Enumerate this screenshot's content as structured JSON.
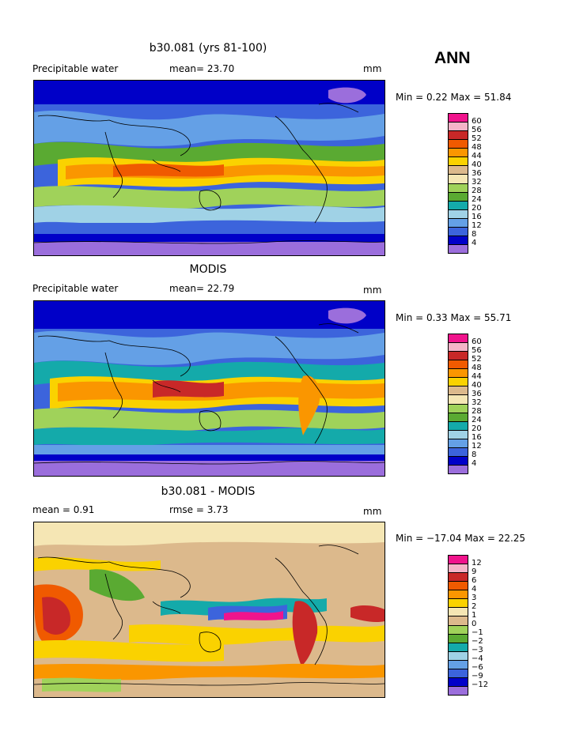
{
  "season": "ANN",
  "units": "mm",
  "panels": [
    {
      "title": "b30.081 (yrs 81-100)",
      "left_label": "Precipitable water",
      "stat_label": "mean=  23.70",
      "units": "mm",
      "minmax": "Min =    0.22 Max =  51.84",
      "scale": [
        "60",
        "56",
        "52",
        "48",
        "44",
        "40",
        "36",
        "32",
        "28",
        "24",
        "20",
        "16",
        "12",
        "8",
        "4"
      ]
    },
    {
      "title": "MODIS",
      "left_label": "Precipitable water",
      "stat_label": "mean=  22.79",
      "units": "mm",
      "minmax": "Min =    0.33 Max =  55.71",
      "scale": [
        "60",
        "56",
        "52",
        "48",
        "44",
        "40",
        "36",
        "32",
        "28",
        "24",
        "20",
        "16",
        "12",
        "8",
        "4"
      ]
    },
    {
      "title": "b30.081 - MODIS",
      "left_label": "mean =    0.91",
      "stat_label": "rmse =    3.73",
      "units": "mm",
      "minmax": "Min = −17.04 Max =  22.25",
      "scale": [
        "12",
        "9",
        "6",
        "4",
        "3",
        "2",
        "1",
        "0",
        "−1",
        "−2",
        "−3",
        "−4",
        "−6",
        "−9",
        "−12"
      ]
    }
  ],
  "colors": {
    "abs_scale": [
      "#f0148c",
      "#f5b4c8",
      "#c82828",
      "#f05a00",
      "#fa9600",
      "#fad200",
      "#dcb98c",
      "#f5e6b4",
      "#a0d25a",
      "#5aaa32",
      "#14aaaa",
      "#a0d2e6",
      "#64a0e6",
      "#3c64dc",
      "#0000c8",
      "#9b6edc"
    ],
    "diff_scale": [
      "#f0148c",
      "#f5b4c8",
      "#c82828",
      "#f05a00",
      "#fa9600",
      "#fad200",
      "#f5e6b4",
      "#dcb98c",
      "#a0d25a",
      "#5aaa32",
      "#14aaaa",
      "#a0d2e6",
      "#64a0e6",
      "#3c64dc",
      "#0000c8",
      "#9b6edc"
    ]
  }
}
